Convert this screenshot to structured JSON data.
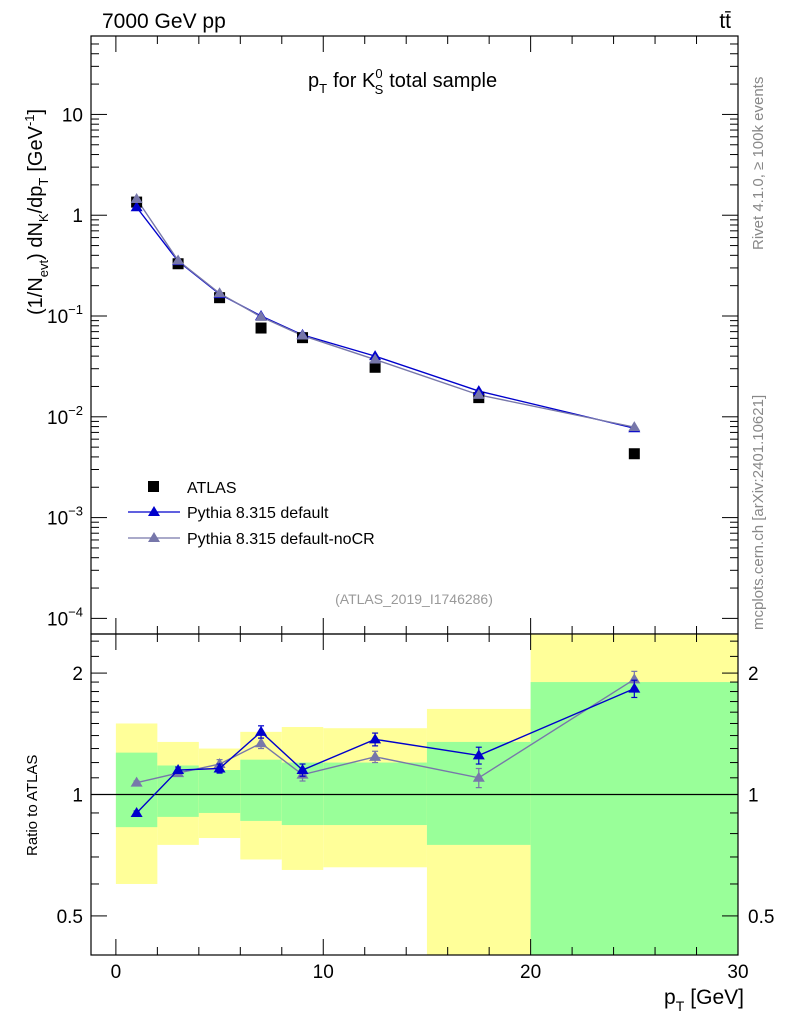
{
  "header": {
    "left": "7000 GeV pp",
    "right": "tt̄"
  },
  "side_labels": {
    "rivet": "Rivet 4.1.0, ≥ 100k events",
    "mcplots": "mcplots.cern.ch [arXiv:2401.10621]"
  },
  "colors": {
    "atlas": "#000000",
    "default": "#0000cc",
    "noCR": "#7777aa",
    "band_inner": "#99ff99",
    "band_outer": "#ffff99"
  },
  "chart_data": [
    {
      "type": "scatter",
      "scale": "log",
      "title_main": "p",
      "title_main_sub": "T",
      "title_for": "for K",
      "title_K_sup": "0",
      "title_K_sub": "S",
      "title_rest": "total sample",
      "ylabel": "(1/N_evt) dN_K/dp_T [GeV^-1]",
      "ylabel_parts": {
        "a": "(1/N",
        "a_sub": "evt",
        "b": ") dN",
        "b_sub": "K",
        "c": "/dp",
        "c_sub": "T",
        "d": "[GeV",
        "d_sup": "-1",
        "e": "]"
      },
      "analysis_id": "(ATLAS_2019_I1746286)",
      "ylim": [
        7e-05,
        60
      ],
      "xlim": [
        -1.2,
        30
      ],
      "y_ticks": [
        {
          "value": 0.0001,
          "base": "10",
          "exp": "−4"
        },
        {
          "value": 0.001,
          "base": "10",
          "exp": "−3"
        },
        {
          "value": 0.01,
          "base": "10",
          "exp": "−2"
        },
        {
          "value": 0.1,
          "base": "10",
          "exp": "−1"
        },
        {
          "value": 1,
          "base": "1",
          "exp": ""
        },
        {
          "value": 10,
          "base": "10",
          "exp": ""
        }
      ],
      "legend": [
        {
          "key": "atlas",
          "label": "ATLAS"
        },
        {
          "key": "default",
          "label": "Pythia 8.315 default"
        },
        {
          "key": "noCR",
          "label": "Pythia 8.315 default-noCR"
        }
      ],
      "series": [
        {
          "name": "ATLAS",
          "key": "atlas",
          "marker": "square",
          "x": [
            1,
            3,
            5,
            7,
            9,
            12.5,
            17.5,
            25
          ],
          "y": [
            1.35,
            0.33,
            0.152,
            0.076,
            0.061,
            0.031,
            0.0155,
            0.0043
          ]
        },
        {
          "name": "Pythia 8.315 default",
          "key": "default",
          "marker": "triangle",
          "x": [
            1,
            3,
            5,
            7,
            9,
            12.5,
            17.5,
            25
          ],
          "y": [
            1.2,
            0.35,
            0.165,
            0.1,
            0.065,
            0.04,
            0.018,
            0.0077
          ]
        },
        {
          "name": "Pythia 8.315 default-noCR",
          "key": "noCR",
          "marker": "triangle",
          "x": [
            1,
            3,
            5,
            7,
            9,
            12.5,
            17.5,
            25
          ],
          "y": [
            1.45,
            0.355,
            0.168,
            0.098,
            0.064,
            0.037,
            0.0165,
            0.0079
          ]
        }
      ]
    },
    {
      "type": "scatter",
      "scale": "log",
      "ylabel": "Ratio to ATLAS",
      "xlabel": "p_T [GeV]",
      "xlabel_parts": {
        "a": "p",
        "a_sub": "T",
        "b": "[GeV]"
      },
      "ylim": [
        0.4,
        2.5
      ],
      "xlim": [
        -1.2,
        30
      ],
      "x_ticks": [
        {
          "value": 0,
          "label": "0"
        },
        {
          "value": 10,
          "label": "10"
        },
        {
          "value": 20,
          "label": "20"
        },
        {
          "value": 30,
          "label": "30"
        }
      ],
      "y_ticks": [
        {
          "value": 0.5,
          "label": "0.5"
        },
        {
          "value": 1,
          "label": "1"
        },
        {
          "value": 2,
          "label": "2"
        }
      ],
      "bands": [
        {
          "x0": 0,
          "x1": 2,
          "inner_lo": 0.83,
          "inner_hi": 1.27,
          "outer_lo": 0.6,
          "outer_hi": 1.5
        },
        {
          "x0": 2,
          "x1": 4,
          "inner_lo": 0.88,
          "inner_hi": 1.18,
          "outer_lo": 0.75,
          "outer_hi": 1.35
        },
        {
          "x0": 4,
          "x1": 6,
          "inner_lo": 0.9,
          "inner_hi": 1.15,
          "outer_lo": 0.78,
          "outer_hi": 1.3
        },
        {
          "x0": 6,
          "x1": 8,
          "inner_lo": 0.86,
          "inner_hi": 1.22,
          "outer_lo": 0.69,
          "outer_hi": 1.43
        },
        {
          "x0": 8,
          "x1": 10,
          "inner_lo": 0.84,
          "inner_hi": 1.2,
          "outer_lo": 0.65,
          "outer_hi": 1.47
        },
        {
          "x0": 10,
          "x1": 15,
          "inner_lo": 0.84,
          "inner_hi": 1.2,
          "outer_lo": 0.66,
          "outer_hi": 1.46
        },
        {
          "x0": 15,
          "x1": 20,
          "inner_lo": 0.75,
          "inner_hi": 1.35,
          "outer_lo": 0.38,
          "outer_hi": 1.63
        },
        {
          "x0": 20,
          "x1": 30,
          "inner_lo": 0.35,
          "inner_hi": 1.9,
          "outer_lo": 0.35,
          "outer_hi": 2.6
        }
      ],
      "series": [
        {
          "name": "Pythia 8.315 default",
          "key": "default",
          "x": [
            1,
            3,
            5,
            7,
            9,
            12.5,
            17.5,
            25
          ],
          "y": [
            0.9,
            1.15,
            1.16,
            1.43,
            1.15,
            1.37,
            1.25,
            1.83
          ],
          "err": [
            0.01,
            0.02,
            0.03,
            0.05,
            0.04,
            0.05,
            0.06,
            0.09
          ]
        },
        {
          "name": "Pythia 8.315 default-noCR",
          "key": "noCR",
          "x": [
            1,
            3,
            5,
            7,
            9,
            12.5,
            17.5,
            25
          ],
          "y": [
            1.07,
            1.13,
            1.19,
            1.34,
            1.12,
            1.24,
            1.1,
            1.93
          ],
          "err": [
            0.01,
            0.02,
            0.03,
            0.04,
            0.04,
            0.04,
            0.06,
            0.09
          ]
        }
      ]
    }
  ]
}
